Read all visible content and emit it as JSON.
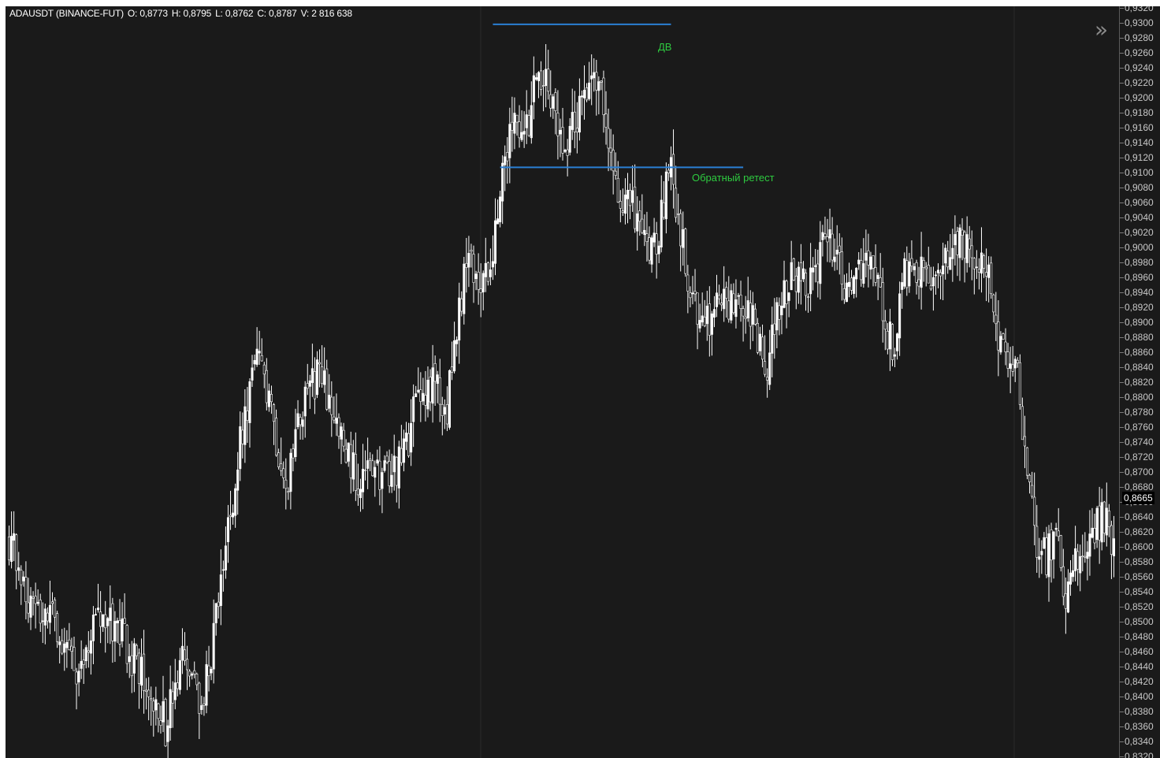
{
  "header": {
    "symbol": "ADAUSDT (BINANCE-FUT)",
    "open": "O: 0,8773",
    "high": "H: 0,8795",
    "low": "L: 0,8762",
    "close": "C: 0,8787",
    "volume": "V: 2 816 638"
  },
  "annotations": {
    "top_label": "ДВ",
    "retest_label": "Обратный ретест"
  },
  "colors": {
    "background": "#1a1a1a",
    "candle": "#ffffff",
    "annotation_line": "#2a7fd4",
    "annotation_text": "#2ecc40"
  },
  "icons": {
    "collapse": "double-chevron-right-icon"
  },
  "chart_data": {
    "type": "candlestick",
    "ylim": [
      0.832,
      0.932
    ],
    "y_ticks": [
      "0,9320",
      "0,9300",
      "0,9280",
      "0,9260",
      "0,9240",
      "0,9220",
      "0,9200",
      "0,9180",
      "0,9160",
      "0,9140",
      "0,9120",
      "0,9100",
      "0,9080",
      "0,9060",
      "0,9040",
      "0,9020",
      "0,9000",
      "0,8980",
      "0,8960",
      "0,8940",
      "0,8920",
      "0,8900",
      "0,8880",
      "0,8860",
      "0,8840",
      "0,8820",
      "0,8800",
      "0,8780",
      "0,8760",
      "0,8740",
      "0,8720",
      "0,8700",
      "0,8680",
      "0,8660",
      "0,8640",
      "0,8620",
      "0,8600",
      "0,8580",
      "0,8560",
      "0,8540",
      "0,8520",
      "0,8500",
      "0,8480",
      "0,8460",
      "0,8440",
      "0,8420",
      "0,8400",
      "0,8380",
      "0,8360",
      "0,8340",
      "0,8320"
    ],
    "y_tick_values": [
      0.932,
      0.93,
      0.928,
      0.926,
      0.924,
      0.922,
      0.92,
      0.918,
      0.916,
      0.914,
      0.912,
      0.91,
      0.908,
      0.906,
      0.904,
      0.902,
      0.9,
      0.898,
      0.896,
      0.894,
      0.892,
      0.89,
      0.888,
      0.886,
      0.884,
      0.882,
      0.88,
      0.878,
      0.876,
      0.874,
      0.872,
      0.87,
      0.868,
      0.866,
      0.864,
      0.862,
      0.86,
      0.858,
      0.856,
      0.854,
      0.852,
      0.85,
      0.848,
      0.846,
      0.844,
      0.842,
      0.84,
      0.838,
      0.836,
      0.834,
      0.832
    ],
    "last_price": "0,8665",
    "last_price_value": 0.8665,
    "horizontal_levels": [
      {
        "name": "double-top-level",
        "price": 0.9298,
        "from_bar": 201,
        "to_bar": 275
      },
      {
        "name": "retest-level",
        "price": 0.9107,
        "from_bar": 204,
        "to_bar": 305
      }
    ],
    "bar_count": 460,
    "approximate_close_path": [
      [
        0,
        0.861
      ],
      [
        10,
        0.852
      ],
      [
        20,
        0.85
      ],
      [
        28,
        0.843
      ],
      [
        35,
        0.85
      ],
      [
        45,
        0.849
      ],
      [
        55,
        0.843
      ],
      [
        65,
        0.836
      ],
      [
        72,
        0.844
      ],
      [
        80,
        0.839
      ],
      [
        86,
        0.85
      ],
      [
        92,
        0.865
      ],
      [
        97,
        0.876
      ],
      [
        103,
        0.885
      ],
      [
        110,
        0.876
      ],
      [
        116,
        0.868
      ],
      [
        122,
        0.879
      ],
      [
        128,
        0.883
      ],
      [
        134,
        0.879
      ],
      [
        140,
        0.872
      ],
      [
        146,
        0.869
      ],
      [
        152,
        0.87
      ],
      [
        158,
        0.869
      ],
      [
        164,
        0.872
      ],
      [
        170,
        0.88
      ],
      [
        176,
        0.882
      ],
      [
        182,
        0.879
      ],
      [
        186,
        0.888
      ],
      [
        190,
        0.899
      ],
      [
        195,
        0.896
      ],
      [
        199,
        0.895
      ],
      [
        203,
        0.906
      ],
      [
        207,
        0.914
      ],
      [
        211,
        0.917
      ],
      [
        215,
        0.915
      ],
      [
        219,
        0.922
      ],
      [
        223,
        0.923
      ],
      [
        227,
        0.918
      ],
      [
        231,
        0.914
      ],
      [
        235,
        0.917
      ],
      [
        239,
        0.921
      ],
      [
        243,
        0.925
      ],
      [
        247,
        0.919
      ],
      [
        251,
        0.91
      ],
      [
        255,
        0.905
      ],
      [
        259,
        0.905
      ],
      [
        263,
        0.903
      ],
      [
        267,
        0.899
      ],
      [
        271,
        0.904
      ],
      [
        275,
        0.911
      ],
      [
        279,
        0.902
      ],
      [
        283,
        0.894
      ],
      [
        287,
        0.891
      ],
      [
        291,
        0.89
      ],
      [
        295,
        0.893
      ],
      [
        299,
        0.892
      ],
      [
        303,
        0.894
      ],
      [
        307,
        0.892
      ],
      [
        311,
        0.888
      ],
      [
        315,
        0.885
      ],
      [
        319,
        0.891
      ],
      [
        323,
        0.895
      ],
      [
        327,
        0.896
      ],
      [
        331,
        0.895
      ],
      [
        335,
        0.896
      ],
      [
        339,
        0.903
      ],
      [
        343,
        0.9
      ],
      [
        347,
        0.894
      ],
      [
        351,
        0.895
      ],
      [
        355,
        0.898
      ],
      [
        359,
        0.896
      ],
      [
        363,
        0.892
      ],
      [
        367,
        0.886
      ],
      [
        371,
        0.895
      ],
      [
        375,
        0.898
      ],
      [
        379,
        0.896
      ],
      [
        383,
        0.896
      ],
      [
        387,
        0.897
      ],
      [
        391,
        0.898
      ],
      [
        395,
        0.902
      ],
      [
        399,
        0.9
      ],
      [
        403,
        0.899
      ],
      [
        407,
        0.895
      ],
      [
        411,
        0.889
      ],
      [
        415,
        0.885
      ],
      [
        419,
        0.884
      ],
      [
        423,
        0.87
      ],
      [
        427,
        0.86
      ],
      [
        431,
        0.859
      ],
      [
        435,
        0.861
      ],
      [
        439,
        0.854
      ],
      [
        443,
        0.858
      ],
      [
        447,
        0.86
      ],
      [
        451,
        0.862
      ],
      [
        455,
        0.864
      ],
      [
        459,
        0.86
      ]
    ]
  }
}
